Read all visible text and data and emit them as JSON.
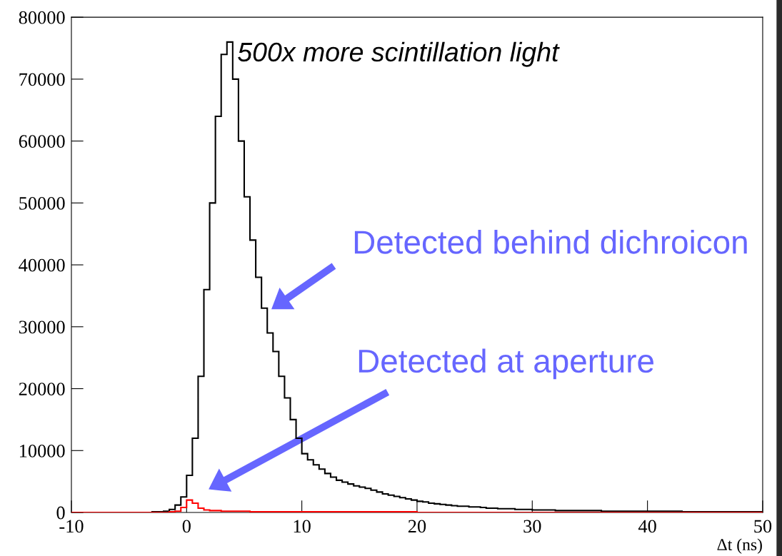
{
  "chart_data": {
    "type": "histogram",
    "xlabel": "Δt (ns)",
    "bins": [
      -10,
      -9.5,
      -9,
      -8.5,
      -8,
      -7.5,
      -7,
      -6.5,
      -6,
      -5.5,
      -5,
      -4.5,
      -4,
      -3.5,
      -3,
      -2.5,
      -2,
      -1.5,
      -1,
      -0.5,
      0,
      0.5,
      1,
      1.5,
      2,
      2.5,
      3,
      3.5,
      4,
      4.5,
      5,
      5.5,
      6,
      6.5,
      7,
      7.5,
      8,
      8.5,
      9,
      9.5,
      10,
      10.5,
      11,
      11.5,
      12,
      12.5,
      13,
      13.5,
      14,
      14.5,
      15,
      15.5,
      16,
      16.5,
      17,
      17.5,
      18,
      18.5,
      19,
      19.5,
      20,
      20.5,
      21,
      21.5,
      22,
      22.5,
      23,
      23.5,
      24,
      24.5,
      25,
      25.5,
      26,
      26.5,
      27,
      27.5,
      28,
      28.5,
      29,
      29.5,
      30,
      30.5,
      31,
      31.5,
      32,
      32.5,
      33,
      33.5,
      34,
      34.5,
      35,
      35.5,
      36,
      36.5,
      37,
      37.5,
      38,
      38.5,
      39,
      39.5,
      40,
      40.5,
      41,
      41.5,
      42,
      42.5,
      43,
      43.5,
      44,
      44.5,
      45,
      45.5,
      46,
      46.5,
      47,
      47.5,
      48,
      48.5,
      49,
      49.5,
      50
    ],
    "series": [
      {
        "color": "#000000",
        "values": [
          0,
          0,
          0,
          0,
          0,
          0,
          0,
          0,
          0,
          0,
          0,
          0,
          0,
          0,
          100,
          100,
          200,
          500,
          1200,
          2500,
          6000,
          12000,
          22000,
          36000,
          50000,
          64000,
          74000,
          76000,
          70000,
          60000,
          51000,
          44000,
          38000,
          33000,
          29000,
          26000,
          22000,
          18500,
          15000,
          12000,
          9500,
          8500,
          7700,
          7000,
          6300,
          5700,
          5200,
          4900,
          4600,
          4300,
          4100,
          3900,
          3600,
          3300,
          3000,
          2800,
          2600,
          2400,
          2200,
          2000,
          1800,
          1700,
          1500,
          1400,
          1300,
          1200,
          1100,
          1000,
          1000,
          900,
          900,
          800,
          700,
          700,
          600,
          600,
          600,
          500,
          500,
          500,
          400,
          400,
          400,
          400,
          300,
          300,
          300,
          300,
          300,
          300,
          300,
          300,
          200,
          200,
          200,
          200,
          200,
          200,
          200,
          200,
          200,
          200,
          200,
          200,
          200,
          200,
          100,
          100,
          100,
          100,
          100,
          100,
          100,
          100,
          100,
          100,
          100,
          100,
          100,
          100
        ]
      },
      {
        "color": "#ff0000",
        "values": [
          0,
          0,
          0,
          0,
          0,
          0,
          0,
          0,
          0,
          0,
          0,
          0,
          0,
          0,
          0,
          0,
          0,
          100,
          200,
          800,
          2000,
          1500,
          700,
          400,
          300,
          300,
          200,
          200,
          200,
          200,
          200,
          100,
          100,
          100,
          100,
          100,
          100,
          100,
          100,
          100,
          100,
          100,
          100,
          100,
          100,
          100,
          100,
          100,
          100,
          100,
          100,
          100,
          100,
          100,
          100,
          100,
          100,
          100,
          100,
          100,
          0,
          0,
          0,
          0,
          0,
          0,
          0,
          0,
          0,
          0,
          0,
          0,
          0,
          0,
          0,
          0,
          0,
          0,
          0,
          0,
          0,
          0,
          0,
          0,
          0,
          0,
          0,
          0,
          0,
          0,
          0,
          0,
          0,
          0,
          0,
          0,
          0,
          0,
          0,
          0,
          0,
          0,
          0,
          0,
          0,
          0,
          0,
          0,
          0,
          0,
          0,
          0,
          0,
          0,
          0,
          0,
          0,
          0,
          0,
          0
        ]
      }
    ],
    "xlim": [
      -10,
      50
    ],
    "xticks": [
      -10,
      0,
      10,
      20,
      30,
      40,
      50
    ],
    "ylim": [
      0,
      80000
    ],
    "yticks": [
      0,
      10000,
      20000,
      30000,
      40000,
      50000,
      60000,
      70000,
      80000
    ],
    "annotations": [
      "500x more scintillation light",
      "Detected behind dichroicon",
      "Detected at aperture"
    ]
  }
}
